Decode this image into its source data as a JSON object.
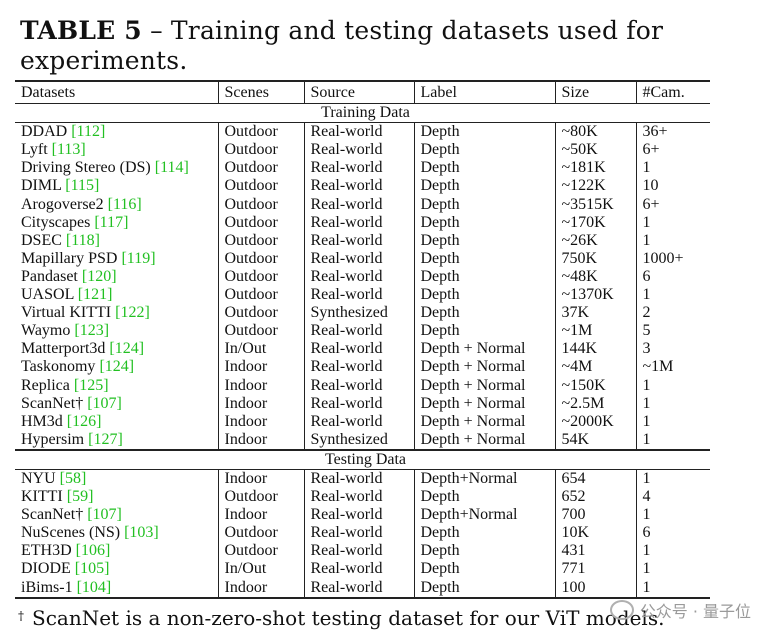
{
  "caption": {
    "label": "TABLE 5",
    "dash": "–",
    "text": "Training and testing datasets used for experiments."
  },
  "table": {
    "headers": [
      "Datasets",
      "Scenes",
      "Source",
      "Label",
      "Size",
      "#Cam."
    ],
    "sections": [
      {
        "title": "Training Data",
        "rows": [
          {
            "name": "DDAD",
            "ref": "[112]",
            "scenes": "Outdoor",
            "source": "Real-world",
            "label": "Depth",
            "size": "~80K",
            "cam": "36+"
          },
          {
            "name": "Lyft",
            "ref": "[113]",
            "scenes": "Outdoor",
            "source": "Real-world",
            "label": "Depth",
            "size": "~50K",
            "cam": "6+"
          },
          {
            "name": "Driving Stereo (DS)",
            "ref": "[114]",
            "scenes": "Outdoor",
            "source": "Real-world",
            "label": "Depth",
            "size": "~181K",
            "cam": "1"
          },
          {
            "name": "DIML",
            "ref": "[115]",
            "scenes": "Outdoor",
            "source": "Real-world",
            "label": "Depth",
            "size": "~122K",
            "cam": "10"
          },
          {
            "name": "Arogoverse2",
            "ref": "[116]",
            "scenes": "Outdoor",
            "source": "Real-world",
            "label": "Depth",
            "size": "~3515K",
            "cam": "6+"
          },
          {
            "name": "Cityscapes",
            "ref": "[117]",
            "scenes": "Outdoor",
            "source": "Real-world",
            "label": "Depth",
            "size": "~170K",
            "cam": "1"
          },
          {
            "name": "DSEC",
            "ref": "[118]",
            "scenes": "Outdoor",
            "source": "Real-world",
            "label": "Depth",
            "size": "~26K",
            "cam": "1"
          },
          {
            "name": "Mapillary PSD",
            "ref": "[119]",
            "scenes": "Outdoor",
            "source": "Real-world",
            "label": "Depth",
            "size": "750K",
            "cam": "1000+"
          },
          {
            "name": "Pandaset",
            "ref": "[120]",
            "scenes": "Outdoor",
            "source": "Real-world",
            "label": "Depth",
            "size": "~48K",
            "cam": "6"
          },
          {
            "name": "UASOL",
            "ref": "[121]",
            "scenes": "Outdoor",
            "source": "Real-world",
            "label": "Depth",
            "size": "~1370K",
            "cam": "1"
          },
          {
            "name": "Virtual KITTI",
            "ref": "[122]",
            "scenes": "Outdoor",
            "source": "Synthesized",
            "label": "Depth",
            "size": "37K",
            "cam": "2"
          },
          {
            "name": "Waymo",
            "ref": "[123]",
            "scenes": "Outdoor",
            "source": "Real-world",
            "label": "Depth",
            "size": "~1M",
            "cam": "5"
          },
          {
            "name": "Matterport3d",
            "ref": "[124]",
            "scenes": "In/Out",
            "source": "Real-world",
            "label": "Depth + Normal",
            "size": "144K",
            "cam": "3"
          },
          {
            "name": "Taskonomy",
            "ref": "[124]",
            "scenes": "Indoor",
            "source": "Real-world",
            "label": "Depth + Normal",
            "size": "~4M",
            "cam": "~1M"
          },
          {
            "name": "Replica",
            "ref": "[125]",
            "scenes": "Indoor",
            "source": "Real-world",
            "label": "Depth + Normal",
            "size": "~150K",
            "cam": "1"
          },
          {
            "name": "ScanNet†",
            "ref": "[107]",
            "scenes": "Indoor",
            "source": "Real-world",
            "label": "Depth + Normal",
            "size": "~2.5M",
            "cam": "1"
          },
          {
            "name": "HM3d",
            "ref": "[126]",
            "scenes": "Indoor",
            "source": "Real-world",
            "label": "Depth + Normal",
            "size": "~2000K",
            "cam": "1"
          },
          {
            "name": "Hypersim",
            "ref": "[127]",
            "scenes": "Indoor",
            "source": "Synthesized",
            "label": "Depth + Normal",
            "size": "54K",
            "cam": "1"
          }
        ]
      },
      {
        "title": "Testing Data",
        "rows": [
          {
            "name": "NYU",
            "ref": "[58]",
            "scenes": "Indoor",
            "source": "Real-world",
            "label": "Depth+Normal",
            "size": "654",
            "cam": "1"
          },
          {
            "name": "KITTI",
            "ref": "[59]",
            "scenes": "Outdoor",
            "source": "Real-world",
            "label": "Depth",
            "size": "652",
            "cam": "4"
          },
          {
            "name": "ScanNet†",
            "ref": "[107]",
            "scenes": "Indoor",
            "source": "Real-world",
            "label": "Depth+Normal",
            "size": "700",
            "cam": "1"
          },
          {
            "name": "NuScenes (NS)",
            "ref": "[103]",
            "scenes": "Outdoor",
            "source": "Real-world",
            "label": "Depth",
            "size": "10K",
            "cam": "6"
          },
          {
            "name": "ETH3D",
            "ref": "[106]",
            "scenes": "Outdoor",
            "source": "Real-world",
            "label": "Depth",
            "size": "431",
            "cam": "1"
          },
          {
            "name": "DIODE",
            "ref": "[105]",
            "scenes": "In/Out",
            "source": "Real-world",
            "label": "Depth",
            "size": "771",
            "cam": "1"
          },
          {
            "name": "iBims-1",
            "ref": "[104]",
            "scenes": "Indoor",
            "source": "Real-world",
            "label": "Depth",
            "size": "100",
            "cam": "1"
          }
        ]
      }
    ]
  },
  "footnote": {
    "mark": "†",
    "text": "ScanNet is a non-zero-shot testing dataset for our ViT models."
  },
  "watermark": {
    "icon": "wechat-icon",
    "text": "公众号 · 量子位"
  },
  "colors": {
    "ref_link": "#22c022",
    "text": "#111111",
    "watermark": "#9a9a9a"
  }
}
